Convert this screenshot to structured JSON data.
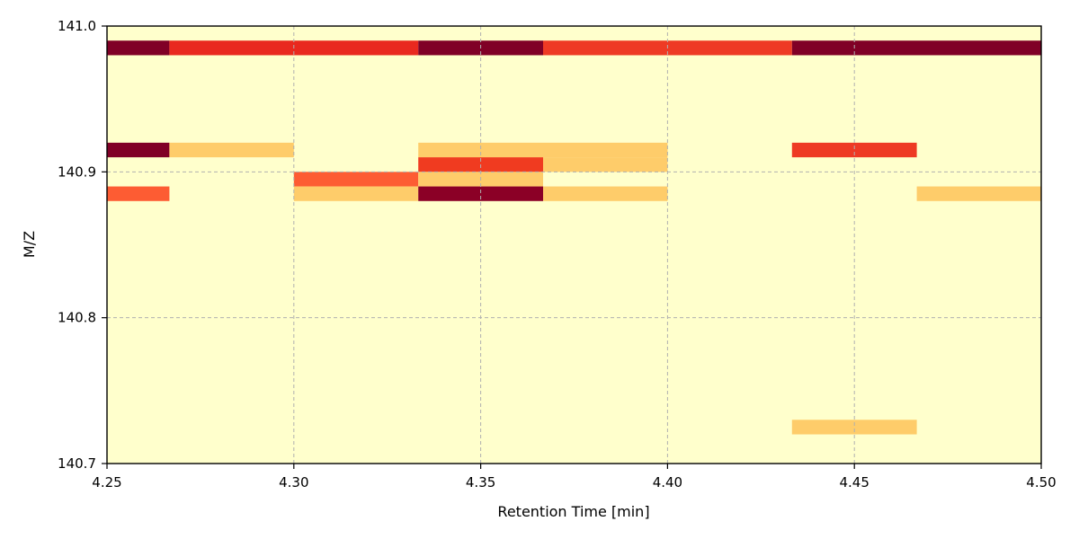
{
  "chart_data": {
    "type": "heatmap",
    "xlabel": "Retention Time [min]",
    "ylabel": "M/Z",
    "xlim": [
      4.25,
      4.5
    ],
    "ylim": [
      140.7,
      141.0
    ],
    "xticks": [
      {
        "value": 4.25,
        "label": "4.25"
      },
      {
        "value": 4.3,
        "label": "4.30"
      },
      {
        "value": 4.35,
        "label": "4.35"
      },
      {
        "value": 4.4,
        "label": "4.40"
      },
      {
        "value": 4.45,
        "label": "4.45"
      },
      {
        "value": 4.5,
        "label": "4.50"
      }
    ],
    "yticks": [
      {
        "value": 140.7,
        "label": "140.7"
      },
      {
        "value": 140.8,
        "label": "140.8"
      },
      {
        "value": 140.9,
        "label": "140.9"
      },
      {
        "value": 141.0,
        "label": "141.0"
      }
    ],
    "grid": true,
    "colormap": "YlOrRd",
    "background_color": "#ffffcc",
    "cells": [
      {
        "x0": 4.25,
        "x1": 4.2667,
        "y0": 140.98,
        "y1": 140.99,
        "color": "#800026"
      },
      {
        "x0": 4.2667,
        "x1": 4.3333,
        "y0": 140.98,
        "y1": 140.99,
        "color": "#e9291f"
      },
      {
        "x0": 4.3333,
        "x1": 4.3667,
        "y0": 140.98,
        "y1": 140.99,
        "color": "#800026"
      },
      {
        "x0": 4.3667,
        "x1": 4.4333,
        "y0": 140.98,
        "y1": 140.99,
        "color": "#ee3a24"
      },
      {
        "x0": 4.4333,
        "x1": 4.5,
        "y0": 140.98,
        "y1": 140.99,
        "color": "#800026"
      },
      {
        "x0": 4.25,
        "x1": 4.2667,
        "y0": 140.91,
        "y1": 140.92,
        "color": "#800026"
      },
      {
        "x0": 4.2667,
        "x1": 4.3,
        "y0": 140.91,
        "y1": 140.92,
        "color": "#fecc6a"
      },
      {
        "x0": 4.3333,
        "x1": 4.4,
        "y0": 140.91,
        "y1": 140.92,
        "color": "#fecc6a"
      },
      {
        "x0": 4.4333,
        "x1": 4.4667,
        "y0": 140.91,
        "y1": 140.92,
        "color": "#ee3a24"
      },
      {
        "x0": 4.3333,
        "x1": 4.3667,
        "y0": 140.9,
        "y1": 140.91,
        "color": "#f03b20"
      },
      {
        "x0": 4.3667,
        "x1": 4.4,
        "y0": 140.9,
        "y1": 140.91,
        "color": "#fecc6a"
      },
      {
        "x0": 4.3,
        "x1": 4.3333,
        "y0": 140.89,
        "y1": 140.9,
        "color": "#fd5c33"
      },
      {
        "x0": 4.3333,
        "x1": 4.3667,
        "y0": 140.89,
        "y1": 140.9,
        "color": "#fecc6a"
      },
      {
        "x0": 4.25,
        "x1": 4.2667,
        "y0": 140.88,
        "y1": 140.89,
        "color": "#fd5c33"
      },
      {
        "x0": 4.3,
        "x1": 4.3333,
        "y0": 140.88,
        "y1": 140.89,
        "color": "#fecc6a"
      },
      {
        "x0": 4.3333,
        "x1": 4.3667,
        "y0": 140.88,
        "y1": 140.89,
        "color": "#8b0026"
      },
      {
        "x0": 4.3667,
        "x1": 4.4,
        "y0": 140.88,
        "y1": 140.89,
        "color": "#fecc6a"
      },
      {
        "x0": 4.4667,
        "x1": 4.5,
        "y0": 140.88,
        "y1": 140.89,
        "color": "#fecc6a"
      },
      {
        "x0": 4.4333,
        "x1": 4.4667,
        "y0": 140.72,
        "y1": 140.73,
        "color": "#fecc6a"
      }
    ]
  }
}
